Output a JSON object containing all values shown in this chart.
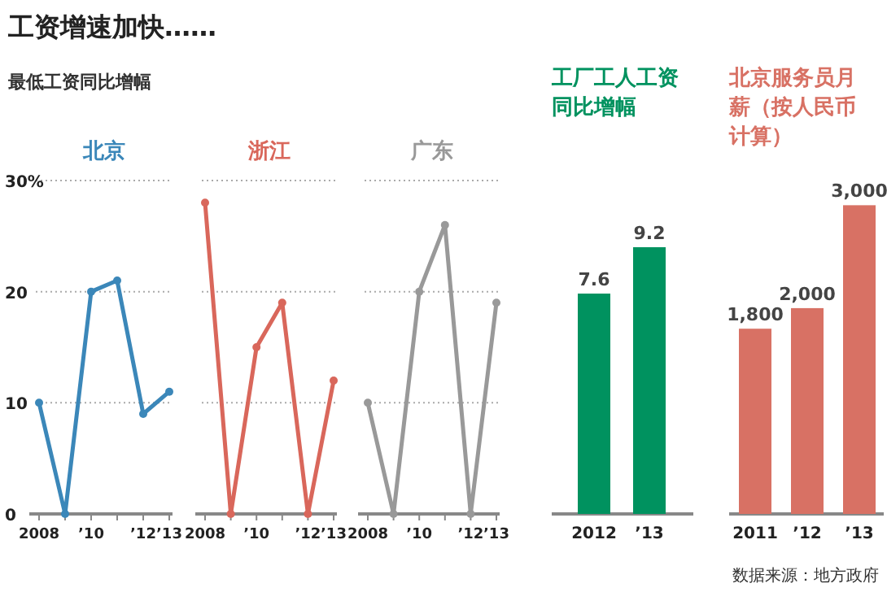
{
  "chart_data": [
    {
      "type": "line",
      "title": "工资增速加快……",
      "subtitle": "最低工资同比增幅",
      "x": [
        2008,
        2009,
        2010,
        2011,
        2012,
        2013
      ],
      "series": [
        {
          "name": "北京",
          "color": "#3b87b9",
          "values": [
            10,
            0,
            20,
            21,
            9,
            11
          ]
        }
      ],
      "xlim": [
        2008,
        2013
      ],
      "xticks": [
        {
          "value": 2008,
          "label": "2008"
        },
        {
          "value": 2009,
          "label": null
        },
        {
          "value": 2010,
          "label": "’10"
        },
        {
          "value": 2011,
          "label": null
        },
        {
          "value": 2012,
          "label": "’12"
        },
        {
          "value": 2013,
          "label": "’13"
        }
      ],
      "ylim": [
        0,
        30
      ],
      "yticks": [
        0,
        10,
        20,
        {
          "value": 30,
          "label": "30%"
        }
      ],
      "grid": "y",
      "marker": "circle",
      "line_style": "solid"
    },
    {
      "type": "line",
      "x": [
        2008,
        2009,
        2010,
        2011,
        2012,
        2013
      ],
      "series": [
        {
          "name": "浙江",
          "color": "#d9675b",
          "values": [
            28,
            0,
            15,
            19,
            0,
            12
          ]
        }
      ],
      "xlim": [
        2008,
        2013
      ],
      "xticks": [
        {
          "value": 2008,
          "label": "2008"
        },
        {
          "value": 2009,
          "label": null
        },
        {
          "value": 2010,
          "label": "’10"
        },
        {
          "value": 2011,
          "label": null
        },
        {
          "value": 2012,
          "label": "’12"
        },
        {
          "value": 2013,
          "label": "’13"
        }
      ],
      "ylim": [
        0,
        30
      ],
      "yticks": [
        0,
        10,
        20,
        30
      ],
      "tick_labels": "x",
      "grid": "y",
      "marker": "circle",
      "line_style": "solid"
    },
    {
      "type": "line",
      "x": [
        2008,
        2009,
        2010,
        2011,
        2012,
        2013
      ],
      "series": [
        {
          "name": "广东",
          "color": "#999999",
          "values": [
            10,
            0,
            20,
            26,
            0,
            19
          ]
        }
      ],
      "xlim": [
        2008,
        2013
      ],
      "xticks": [
        {
          "value": 2008,
          "label": "2008"
        },
        {
          "value": 2009,
          "label": null
        },
        {
          "value": 2010,
          "label": "’10"
        },
        {
          "value": 2011,
          "label": null
        },
        {
          "value": 2012,
          "label": "’12"
        },
        {
          "value": 2013,
          "label": "’13"
        }
      ],
      "ylim": [
        0,
        30
      ],
      "yticks": [
        0,
        10,
        20,
        30
      ],
      "tick_labels": "x",
      "grid": "y",
      "marker": "circle",
      "line_style": "solid"
    },
    {
      "type": "bar",
      "title": "工厂工人工资同比增幅",
      "categories": [
        "2012",
        "’13"
      ],
      "series": [
        {
          "color": "#00925f",
          "values": [
            7.6,
            9.2
          ]
        }
      ],
      "data_labels": true
    },
    {
      "type": "bar",
      "title": "北京服务员月薪（按人民币计算）",
      "categories": [
        "2011",
        "’12",
        "’13"
      ],
      "series": [
        {
          "color": "#d87164",
          "values": [
            1800,
            2000,
            3000
          ],
          "value_labels": [
            "1,800",
            "2,000",
            "3,000"
          ]
        }
      ],
      "annotations": [
        "数据来源：地方政府"
      ]
    }
  ]
}
